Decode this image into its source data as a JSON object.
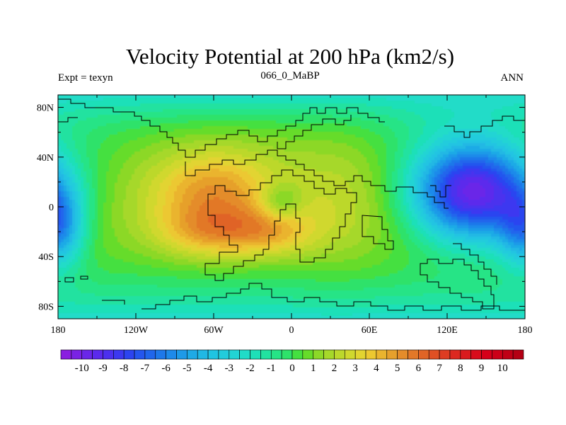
{
  "title": "Velocity Potential at 200 hPa (km2/s)",
  "left_label": "Expt = texyn",
  "center_label": "066_0_MaBP",
  "right_label": "ANN",
  "lat_ticks": [
    {
      "value": 80,
      "label": "80N"
    },
    {
      "value": 40,
      "label": "40N"
    },
    {
      "value": 0,
      "label": "0"
    },
    {
      "value": -40,
      "label": "40S"
    },
    {
      "value": -80,
      "label": "80S"
    }
  ],
  "lon_ticks": [
    {
      "value": -180,
      "label": "180"
    },
    {
      "value": -120,
      "label": "120W"
    },
    {
      "value": -60,
      "label": "60W"
    },
    {
      "value": 0,
      "label": "0"
    },
    {
      "value": 60,
      "label": "60E"
    },
    {
      "value": 120,
      "label": "120E"
    },
    {
      "value": 180,
      "label": "180"
    }
  ],
  "colorbar": {
    "min": -11,
    "max": 11,
    "step": 0.5,
    "labels": [
      "-10",
      "-9",
      "-8",
      "-7",
      "-6",
      "-5",
      "-4",
      "-3",
      "-2",
      "-1",
      "0",
      "1",
      "2",
      "3",
      "4",
      "5",
      "6",
      "7",
      "8",
      "9",
      "10"
    ],
    "colors": [
      "#8a1ee0",
      "#7a22e4",
      "#6a26e8",
      "#5b2aec",
      "#4c30ee",
      "#3c38f0",
      "#2c44f0",
      "#2456ee",
      "#2066ec",
      "#1e78ea",
      "#1e8aea",
      "#1e9ae8",
      "#1eaae6",
      "#20b8e4",
      "#20c4e2",
      "#22ccdc",
      "#22d4d4",
      "#20dcc8",
      "#1ee0b8",
      "#22e2a0",
      "#26e486",
      "#2ee26a",
      "#44e040",
      "#66dc2a",
      "#8cd828",
      "#a6d82a",
      "#bcd82c",
      "#d0d82e",
      "#e2d430",
      "#ecc830",
      "#eab42e",
      "#e6a02c",
      "#e48c2a",
      "#e27828",
      "#e06426",
      "#e05024",
      "#de3c22",
      "#dc2820",
      "#da1a1e",
      "#d80c1c",
      "#d6001a",
      "#cc0018",
      "#c00016",
      "#b40014"
    ]
  },
  "chart_data": {
    "type": "heatmap",
    "title": "Velocity Potential at 200 hPa (km2/s)",
    "units": "km2/s",
    "level": "200 hPa",
    "experiment": "texyn",
    "case": "066_0_MaBP",
    "season": "ANN",
    "xlim": [
      -180,
      180
    ],
    "ylim": [
      -90,
      90
    ],
    "colorbar_range": [
      -10,
      10
    ],
    "field_components": [
      {
        "feature": "minimum",
        "lon": 140,
        "lat": 10,
        "value": -9.5
      },
      {
        "feature": "minimum",
        "lon": -180,
        "lat": -20,
        "value": -6
      },
      {
        "feature": "maximum",
        "lon": -55,
        "lat": 18,
        "value": 5.5
      },
      {
        "feature": "maximum",
        "lon": -65,
        "lat": -20,
        "value": 4.5
      },
      {
        "feature": "maximum",
        "lon": -15,
        "lat": -20,
        "value": 4
      },
      {
        "feature": "local_low",
        "lon": -5,
        "lat": 5,
        "value": 1
      }
    ]
  }
}
